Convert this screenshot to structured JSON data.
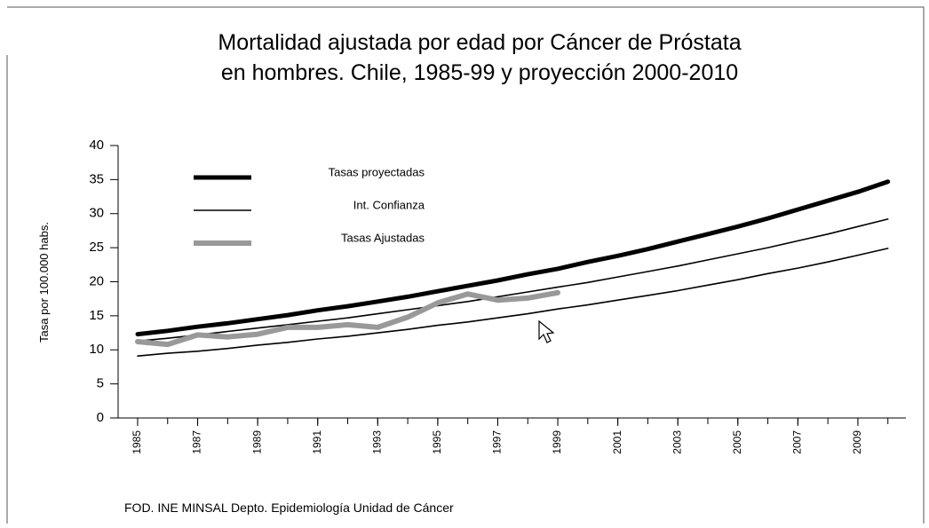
{
  "chart_data": {
    "type": "line",
    "title": [
      "Mortalidad ajustada por edad por Cáncer de Próstata",
      "en hombres. Chile, 1985-99 y proyección 2000-2010"
    ],
    "y_label": "Tasa por 100.000 habs.",
    "source": "FOD. INE MINSAL Depto. Epidemiología Unidad de Cáncer",
    "x": [
      1985,
      1986,
      1987,
      1988,
      1989,
      1990,
      1991,
      1992,
      1993,
      1994,
      1995,
      1996,
      1997,
      1998,
      1999,
      2000,
      2001,
      2002,
      2003,
      2004,
      2005,
      2006,
      2007,
      2008,
      2009,
      2010
    ],
    "xlim": [
      1984.35,
      2010.6
    ],
    "xticks": [
      1985,
      1987,
      1989,
      1991,
      1993,
      1995,
      1997,
      1999,
      2001,
      2003,
      2005,
      2007,
      2009
    ],
    "ylim": [
      0,
      40
    ],
    "yticks": [
      0,
      5,
      10,
      15,
      20,
      25,
      30,
      35,
      40
    ],
    "series": [
      {
        "name": "Tasas proyectadas",
        "color": "#000000",
        "values": [
          12.3,
          12.8,
          13.4,
          13.9,
          14.5,
          15.1,
          15.8,
          16.4,
          17.1,
          17.8,
          18.6,
          19.4,
          20.2,
          21.1,
          21.9,
          22.9,
          23.8,
          24.8,
          25.9,
          27.0,
          28.1,
          29.3,
          30.6,
          31.9,
          33.2,
          34.7
        ]
      },
      {
        "name": "Int. Confianza",
        "color": "#000000",
        "values": [
          11.3,
          11.7,
          12.2,
          12.7,
          13.2,
          13.7,
          14.2,
          14.7,
          15.3,
          15.9,
          16.5,
          17.1,
          17.8,
          18.5,
          19.2,
          19.9,
          20.7,
          21.5,
          22.3,
          23.2,
          24.1,
          25.0,
          26.0,
          27.0,
          28.1,
          29.2
        ]
      },
      {
        "color": "#000000",
        "values": [
          9.1,
          9.5,
          9.8,
          10.2,
          10.7,
          11.1,
          11.6,
          12.0,
          12.5,
          13.0,
          13.6,
          14.1,
          14.7,
          15.3,
          16.0,
          16.6,
          17.3,
          18.0,
          18.7,
          19.5,
          20.3,
          21.2,
          22.0,
          22.9,
          23.9,
          24.9
        ]
      },
      {
        "name": "Tasas Ajustadas",
        "color": "#999999",
        "values": [
          11.2,
          10.8,
          12.2,
          11.9,
          12.3,
          13.3,
          13.3,
          13.7,
          13.3,
          14.8,
          16.9,
          18.2,
          17.3,
          17.6,
          18.4,
          null,
          null,
          null,
          null,
          null,
          null,
          null,
          null,
          null,
          null,
          null
        ]
      }
    ]
  }
}
